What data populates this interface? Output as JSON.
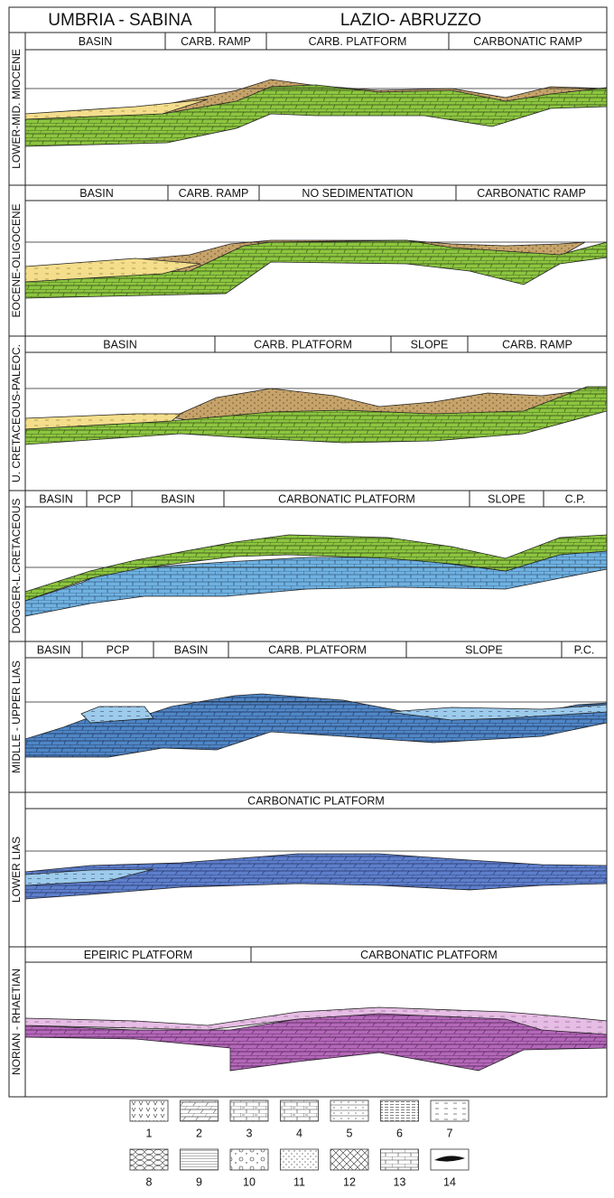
{
  "header": {
    "left": "UMBRIA - SABINA",
    "right": "LAZIO- ABRUZZO"
  },
  "rows": [
    {
      "label": "LOWER-MID. MIOCENE",
      "segments": [
        "BASIN",
        "CARB. RAMP",
        "CARB. PLATFORM",
        "CARBONATIC RAMP"
      ]
    },
    {
      "label": "EOCENE-OLIGOCENE",
      "segments": [
        "BASIN",
        "CARB. RAMP",
        "NO SEDIMENTATION",
        "CARBONATIC RAMP"
      ]
    },
    {
      "label": "U. CRETACEOUS-PALEOC.",
      "segments": [
        "BASIN",
        "CARB. PLATFORM",
        "SLOPE",
        "CARB. RAMP"
      ]
    },
    {
      "label": "DOGGER-L.CRETACEOUS",
      "segments": [
        "BASIN",
        "PCP",
        "BASIN",
        "CARBONATIC PLATFORM",
        "SLOPE",
        "C.P."
      ]
    },
    {
      "label": "MIDLLE - UPPER LIAS",
      "segments": [
        "BASIN",
        "PCP",
        "BASIN",
        "CARB. PLATFORM",
        "SLOPE",
        "P.C."
      ]
    },
    {
      "label": "LOWER LIAS",
      "segments": [
        "CARBONATIC PLATFORM"
      ]
    },
    {
      "label": "NORIAN - RHAETIAN",
      "segments": [
        "EPEIRIC PLATFORM",
        "CARBONATIC PLATFORM"
      ]
    }
  ],
  "legend": [
    "1",
    "2",
    "3",
    "4",
    "5",
    "6",
    "7",
    "8",
    "9",
    "10",
    "11",
    "12",
    "13",
    "14"
  ]
}
